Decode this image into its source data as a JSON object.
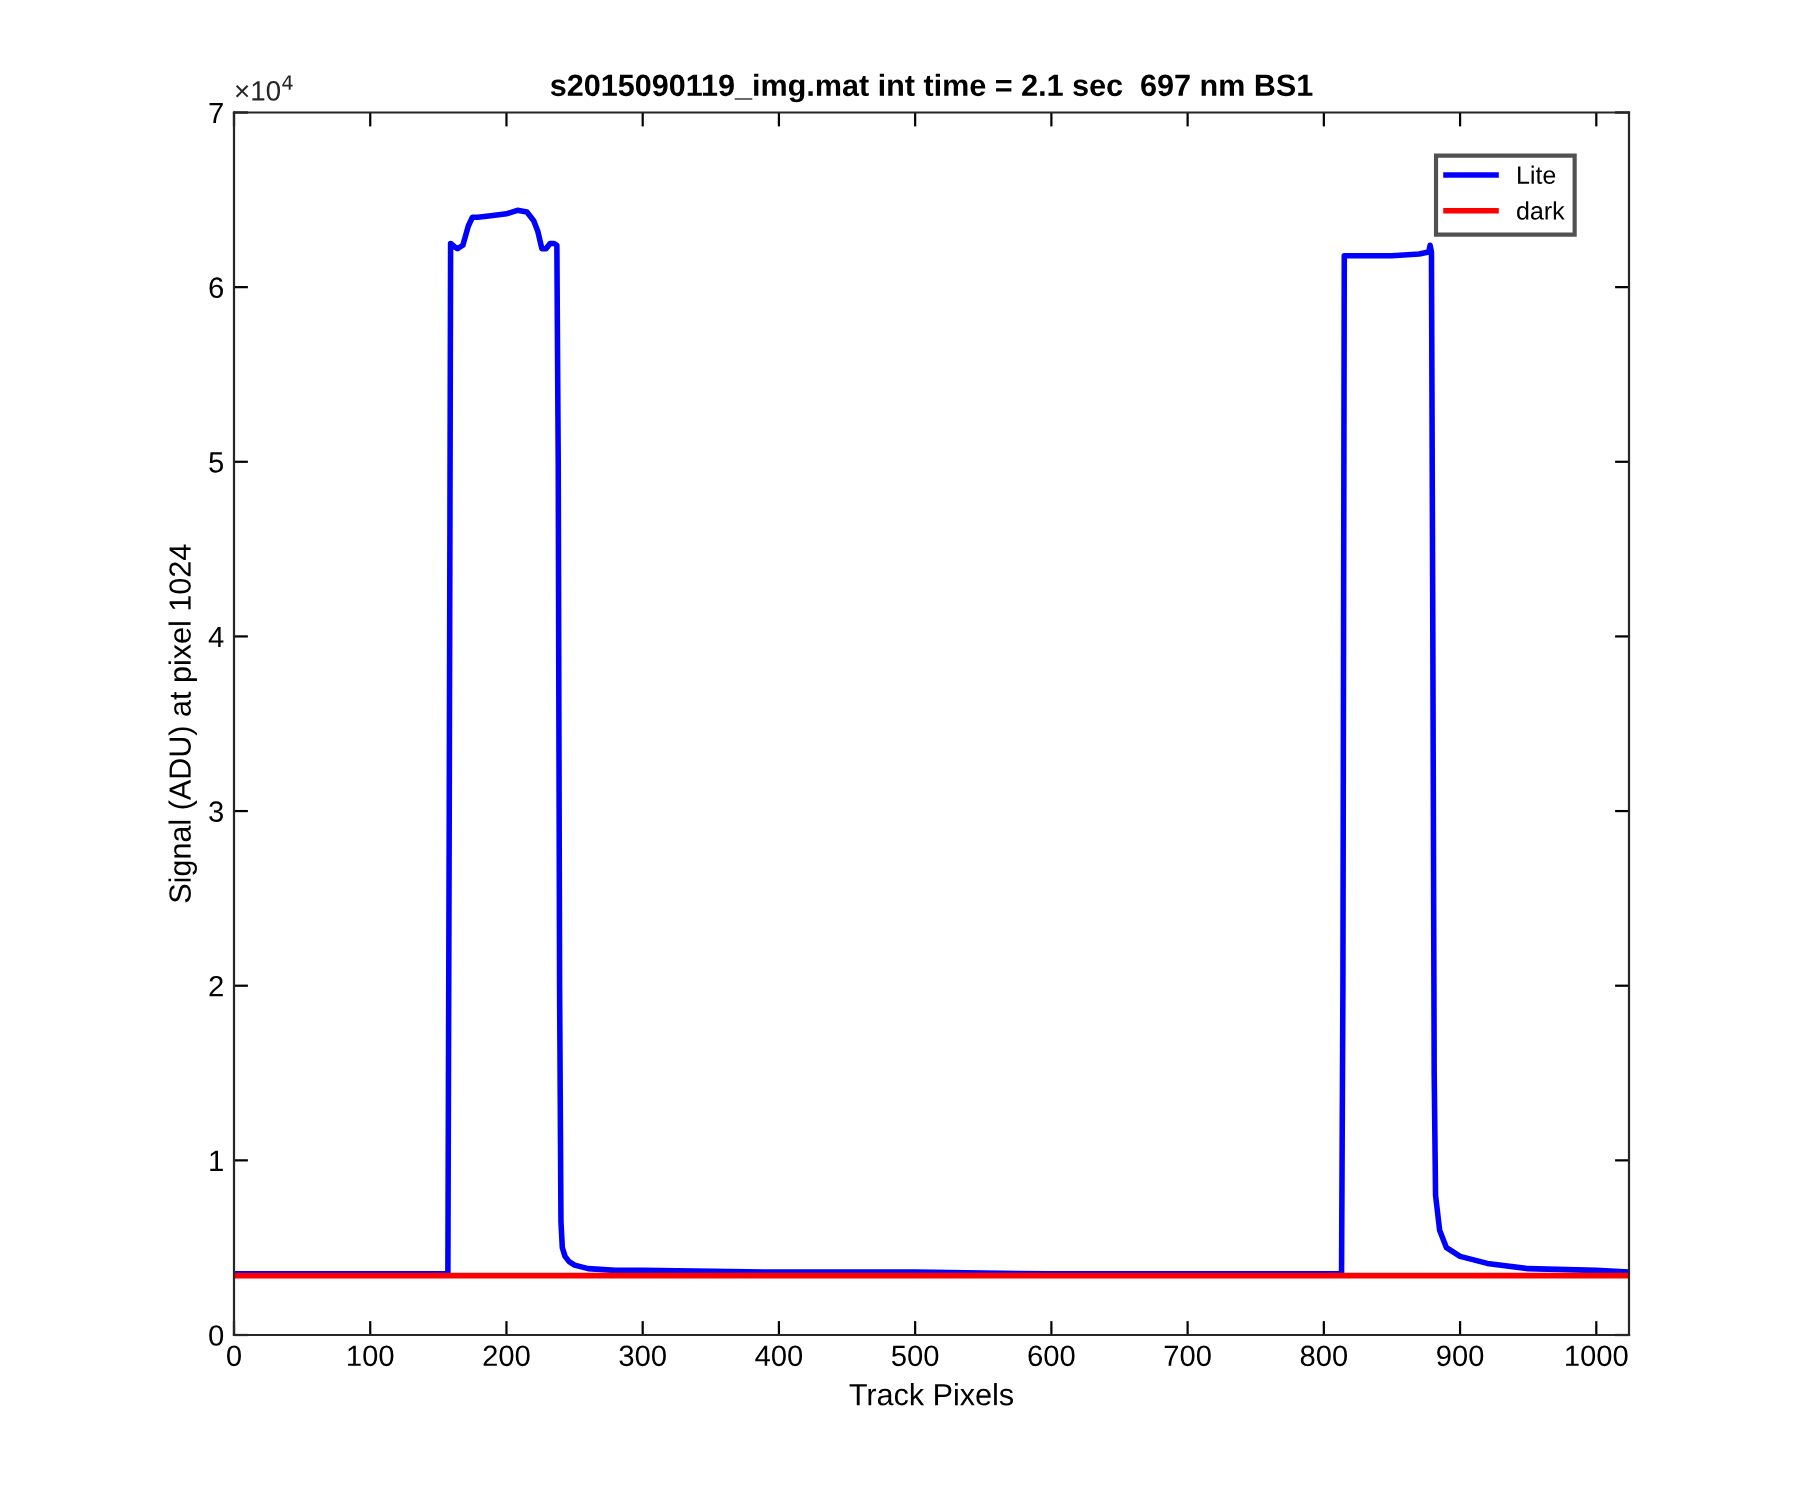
{
  "chart_data": {
    "type": "line",
    "title": "s2015090119_img.mat int time = 2.1 sec  697 nm BS1",
    "xlabel": "Track Pixels",
    "ylabel": "Signal (ADU) at pixel 1024",
    "annotations": [
      "×10$^{4}$"
    ],
    "xlim": [
      0,
      1024
    ],
    "xticks": [
      0,
      100,
      200,
      300,
      400,
      500,
      600,
      700,
      800,
      900,
      1000
    ],
    "ylim": [
      0,
      7
    ],
    "yticks": [
      0,
      1,
      2,
      3,
      4,
      5,
      6,
      7
    ],
    "grid": false,
    "legend": "top right",
    "marker": "none",
    "line_style": "solid",
    "series": [
      {
        "name": "Lite",
        "color": "#0000ff",
        "x": [
          1,
          100,
          157,
          158,
          159,
          162,
          164,
          168,
          172,
          175,
          179,
          190,
          200,
          208,
          215,
          220,
          223,
          226,
          229,
          232,
          235,
          237,
          238,
          239,
          240,
          241,
          243,
          246,
          250,
          260,
          280,
          300,
          400,
          500,
          600,
          700,
          800,
          813,
          814,
          815,
          816,
          830,
          850,
          870,
          876,
          877,
          878,
          879,
          880,
          881,
          882,
          885,
          890,
          900,
          920,
          950,
          1000,
          1024
        ],
        "values": [
          0.35,
          0.35,
          0.35,
          3.0,
          6.25,
          6.23,
          6.22,
          6.24,
          6.35,
          6.4,
          6.4,
          6.41,
          6.42,
          6.44,
          6.43,
          6.38,
          6.32,
          6.22,
          6.22,
          6.25,
          6.25,
          6.24,
          5.0,
          2.0,
          0.65,
          0.5,
          0.45,
          0.42,
          0.4,
          0.38,
          0.37,
          0.37,
          0.36,
          0.36,
          0.35,
          0.35,
          0.35,
          0.35,
          2.0,
          6.18,
          6.18,
          6.18,
          6.18,
          6.19,
          6.2,
          6.2,
          6.24,
          6.2,
          4.0,
          1.5,
          0.8,
          0.6,
          0.5,
          0.45,
          0.41,
          0.38,
          0.37,
          0.36
        ]
      },
      {
        "name": "dark",
        "color": "#ff0000",
        "x": [
          1,
          1024
        ],
        "values": [
          0.34,
          0.34
        ]
      }
    ]
  }
}
